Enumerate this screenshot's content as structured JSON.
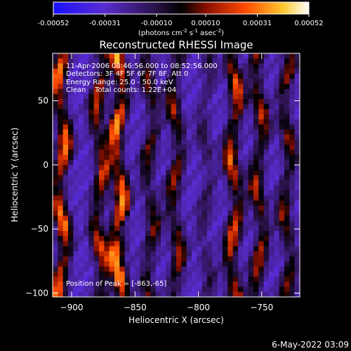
{
  "colorbar": {
    "tick_labels": [
      "-0.00052",
      "-0.00031",
      "-0.00010",
      "0.00010",
      "0.00031",
      "0.00052"
    ],
    "tick_values": [
      -0.00052,
      -0.00031,
      -0.0001,
      0.0001,
      0.00031,
      0.00052
    ],
    "range": [
      -0.00052,
      0.00052
    ],
    "unit_label": "(photons cm",
    "unit_sup1": "-2",
    "unit_mid": " s",
    "unit_sup2": "-1",
    "unit_mid2": " asec",
    "unit_sup3": "-2",
    "unit_end": ")"
  },
  "chart_data": {
    "type": "heatmap",
    "title": "Reconstructed RHESSI Image",
    "xlabel": "Heliocentric X (arcsec)",
    "ylabel": "Heliocentric Y (arcsec)",
    "xlim": [
      -915,
      -720
    ],
    "ylim": [
      -103,
      87
    ],
    "x_ticks": [
      -900,
      -850,
      -800,
      -750
    ],
    "x_tick_labels": [
      "−900",
      "−850",
      "−800",
      "−750"
    ],
    "y_ticks": [
      -100,
      -50,
      0,
      50
    ],
    "y_tick_labels": [
      "−100",
      "−50",
      "0",
      "50"
    ],
    "annotations": [
      "11-Apr-2006 08:46:56.000 to 08:52:56.000",
      "Detectors: 3F 4F 5F 6F 7F 8F, Att 0",
      "Energy Range: 25.0 - 50.0 keV",
      "Clean    Total counts: 1.22E+04"
    ],
    "peak_label": "Position of Peak = [-863,-65]",
    "peak": [
      -863,
      -65
    ],
    "stripes": [
      {
        "x": -908,
        "amp": 0.95
      },
      {
        "x": -878,
        "amp": 0.75
      },
      {
        "x": -863,
        "amp": 1.0
      },
      {
        "x": -838,
        "amp": 0.55
      },
      {
        "x": -818,
        "amp": 0.65
      },
      {
        "x": -794,
        "amp": 0.3
      },
      {
        "x": -772,
        "amp": 0.85
      },
      {
        "x": -752,
        "amp": 0.7
      },
      {
        "x": -730,
        "amp": 0.6
      }
    ]
  },
  "footer": {
    "date": "6-May-2022 03:09"
  }
}
